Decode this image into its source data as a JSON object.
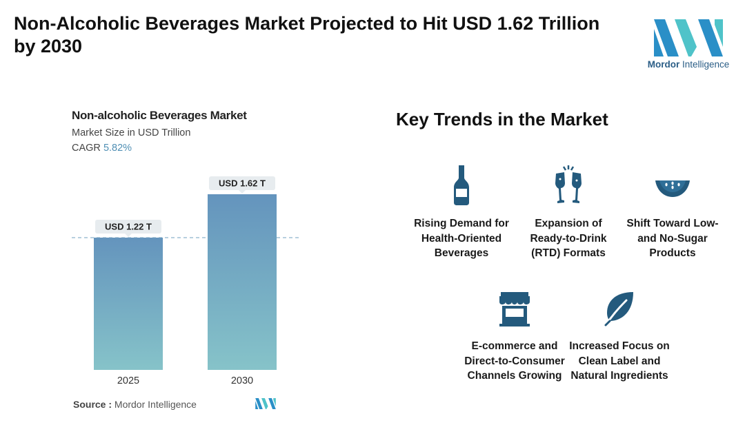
{
  "headline": "Non-Alcoholic Beverages Market Projected to Hit USD 1.62 Trillion by 2030",
  "brand": {
    "name_bold": "Mordor",
    "name_rest": " Intelligence",
    "color": "#2a5d86",
    "accent": "#4fc3c9"
  },
  "chart": {
    "title": "Non-alcoholic Beverages Market",
    "subtitle": "Market Size in USD Trillion",
    "cagr_label": "CAGR",
    "cagr_value": "5.82%"
  },
  "chart_data": {
    "type": "bar",
    "categories": [
      "2025",
      "2030"
    ],
    "values": [
      1.22,
      1.62
    ],
    "data_labels": [
      "USD 1.22 T",
      "USD 1.62 T"
    ],
    "title": "Non-alcoholic Beverages Market",
    "ylabel": "Market Size in USD Trillion",
    "ylim": [
      0,
      1.62
    ],
    "grid": false,
    "reference_line": "dashed line at 2025 value",
    "bar_gradient": [
      "#6494bd",
      "#86c3c9"
    ]
  },
  "source": {
    "label": "Source :",
    "value": "Mordor Intelligence"
  },
  "trends": {
    "title": "Key Trends in the Market",
    "icon_color": "#245a7d",
    "items": [
      {
        "label": "Rising Demand for Health-Oriented Beverages",
        "icon": "bottle-icon"
      },
      {
        "label": "Expansion of Ready-to-Drink (RTD) Formats",
        "icon": "toast-glasses-icon"
      },
      {
        "label": "Shift Toward Low- and No-Sugar Products",
        "icon": "watermelon-icon"
      },
      {
        "label": "E-commerce and Direct-to-Consumer Channels Growing",
        "icon": "storefront-icon"
      },
      {
        "label": "Increased Focus on Clean Label and Natural Ingredients",
        "icon": "leaf-icon"
      }
    ]
  }
}
